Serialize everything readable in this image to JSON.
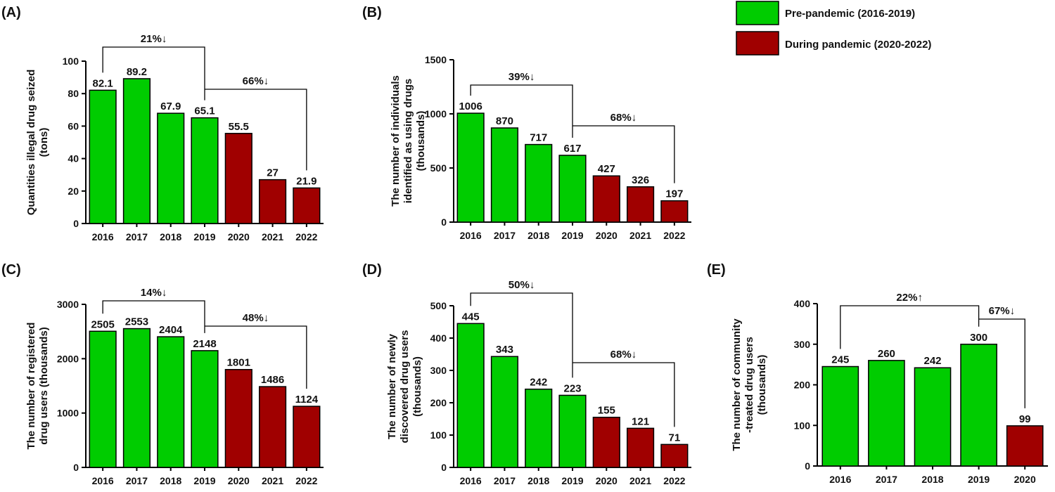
{
  "legend": {
    "pre": {
      "label": "Pre-pandemic (2016-2019)",
      "color": "#00cc00"
    },
    "during": {
      "label": "During pandemic (2020-2022)",
      "color": "#a00000"
    }
  },
  "chart_data": [
    {
      "panel": "(A)",
      "type": "bar",
      "categories": [
        "2016",
        "2017",
        "2018",
        "2019",
        "2020",
        "2021",
        "2022"
      ],
      "values": [
        82.1,
        89.2,
        67.9,
        65.1,
        55.5,
        27,
        21.9
      ],
      "value_labels": [
        "82.1",
        "89.2",
        "67.9",
        "65.1",
        "55.5",
        "27",
        "21.9"
      ],
      "period": [
        "pre",
        "pre",
        "pre",
        "pre",
        "during",
        "during",
        "during"
      ],
      "ylabel": [
        "Quantities illegal drug seized",
        "(tons)"
      ],
      "ylim": [
        0,
        100
      ],
      "yticks": [
        0,
        20,
        40,
        60,
        80,
        100
      ],
      "annotations": [
        {
          "from": 0,
          "to": 3,
          "text": "21%↓"
        },
        {
          "from": 3,
          "to": 6,
          "text": "66%↓"
        }
      ]
    },
    {
      "panel": "(B)",
      "type": "bar",
      "categories": [
        "2016",
        "2017",
        "2018",
        "2019",
        "2020",
        "2021",
        "2022"
      ],
      "values": [
        1006,
        870,
        717,
        617,
        427,
        326,
        197
      ],
      "value_labels": [
        "1006",
        "870",
        "717",
        "617",
        "427",
        "326",
        "197"
      ],
      "period": [
        "pre",
        "pre",
        "pre",
        "pre",
        "during",
        "during",
        "during"
      ],
      "ylabel": [
        "The number of  individuals",
        "identified as using drugs",
        "(thousands)"
      ],
      "ylim": [
        0,
        1500
      ],
      "yticks": [
        0,
        500,
        1000,
        1500
      ],
      "annotations": [
        {
          "from": 0,
          "to": 3,
          "text": "39%↓"
        },
        {
          "from": 3,
          "to": 6,
          "text": "68%↓"
        }
      ]
    },
    {
      "panel": "(C)",
      "type": "bar",
      "categories": [
        "2016",
        "2017",
        "2018",
        "2019",
        "2020",
        "2021",
        "2022"
      ],
      "values": [
        2505,
        2553,
        2404,
        2148,
        1801,
        1486,
        1124
      ],
      "value_labels": [
        "2505",
        "2553",
        "2404",
        "2148",
        "1801",
        "1486",
        "1124"
      ],
      "period": [
        "pre",
        "pre",
        "pre",
        "pre",
        "during",
        "during",
        "during"
      ],
      "ylabel": [
        "The number of registered",
        "drug users (thousands)"
      ],
      "ylim": [
        0,
        3000
      ],
      "yticks": [
        0,
        1000,
        2000,
        3000
      ],
      "annotations": [
        {
          "from": 0,
          "to": 3,
          "text": "14%↓"
        },
        {
          "from": 3,
          "to": 6,
          "text": "48%↓"
        }
      ]
    },
    {
      "panel": "(D)",
      "type": "bar",
      "categories": [
        "2016",
        "2017",
        "2018",
        "2019",
        "2020",
        "2021",
        "2022"
      ],
      "values": [
        445,
        343,
        242,
        223,
        155,
        121,
        71
      ],
      "value_labels": [
        "445",
        "343",
        "242",
        "223",
        "155",
        "121",
        "71"
      ],
      "period": [
        "pre",
        "pre",
        "pre",
        "pre",
        "during",
        "during",
        "during"
      ],
      "ylabel": [
        "The number of newly",
        "discovered drug users",
        "(thousands)"
      ],
      "ylim": [
        0,
        500
      ],
      "yticks": [
        0,
        100,
        200,
        300,
        400,
        500
      ],
      "annotations": [
        {
          "from": 0,
          "to": 3,
          "text": "50%↓"
        },
        {
          "from": 3,
          "to": 6,
          "text": "68%↓"
        }
      ]
    },
    {
      "panel": "(E)",
      "type": "bar",
      "categories": [
        "2016",
        "2017",
        "2018",
        "2019",
        "2020"
      ],
      "values": [
        245,
        260,
        242,
        300,
        99
      ],
      "value_labels": [
        "245",
        "260",
        "242",
        "300",
        "99"
      ],
      "period": [
        "pre",
        "pre",
        "pre",
        "pre",
        "during"
      ],
      "ylabel": [
        "The number of community",
        "-treated drug users",
        "(thousands)"
      ],
      "ylim": [
        0,
        400
      ],
      "yticks": [
        0,
        100,
        200,
        300,
        400
      ],
      "annotations": [
        {
          "from": 0,
          "to": 3,
          "text": "22%↑"
        },
        {
          "from": 3,
          "to": 4,
          "text": "67%↓"
        }
      ]
    }
  ]
}
